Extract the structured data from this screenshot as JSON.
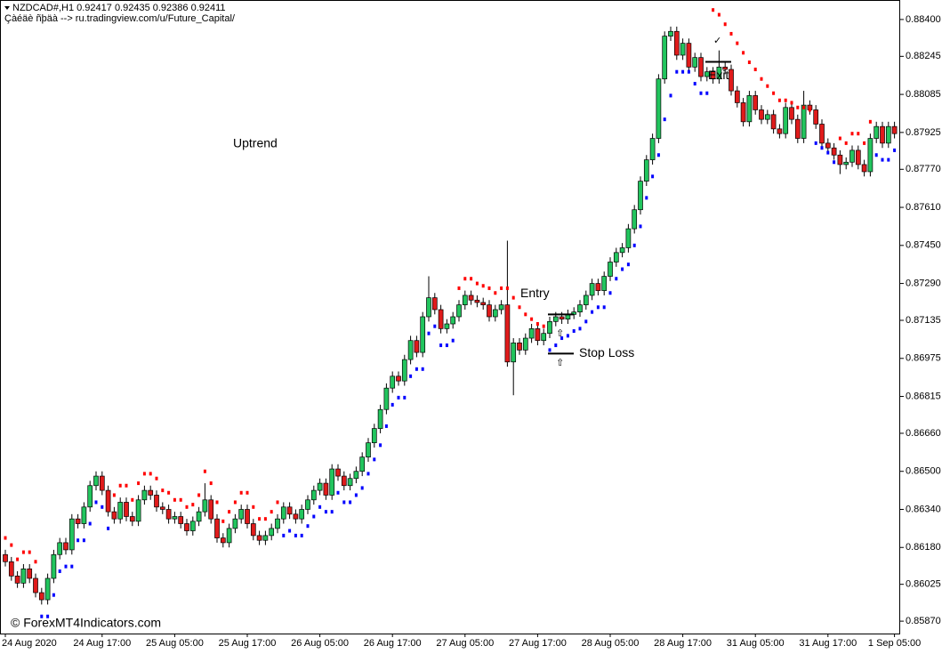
{
  "header": {
    "symbol": "NZDCAD#,H1  0.92417 0.92435 0.92386 0.92411",
    "note": "Çàéäè ñþäà --> ru.tradingview.com/u/Future_Capital/"
  },
  "chart_data": {
    "type": "candlestick",
    "categories": [
      "24 Aug 2020",
      null,
      null,
      null,
      null,
      null,
      null,
      null,
      null,
      null,
      null,
      null,
      null,
      null,
      null,
      null,
      "24 Aug 17:00",
      null,
      null,
      null,
      null,
      null,
      null,
      null,
      null,
      null,
      null,
      null,
      "25 Aug 05:00",
      null,
      null,
      null,
      null,
      null,
      null,
      null,
      null,
      null,
      null,
      null,
      "25 Aug 17:00",
      null,
      null,
      null,
      null,
      null,
      null,
      null,
      null,
      null,
      null,
      null,
      "26 Aug 05:00",
      null,
      null,
      null,
      null,
      null,
      null,
      null,
      null,
      null,
      null,
      null,
      "26 Aug 17:00",
      null,
      null,
      null,
      null,
      null,
      null,
      null,
      null,
      null,
      null,
      null,
      "27 Aug 05:00",
      null,
      null,
      null,
      null,
      null,
      null,
      null,
      null,
      null,
      null,
      null,
      "27 Aug 17:00",
      null,
      null,
      null,
      null,
      null,
      null,
      null,
      null,
      null,
      null,
      null,
      "28 Aug 05:00",
      null,
      null,
      null,
      null,
      null,
      null,
      null,
      null,
      null,
      null,
      null,
      "28 Aug 17:00",
      null,
      null,
      null,
      null,
      null,
      null,
      null,
      null,
      null,
      null,
      null,
      "31 Aug 05:00",
      null,
      null,
      null,
      null,
      null,
      null,
      null,
      null,
      null,
      null,
      null,
      "31 Aug 17:00",
      null,
      null,
      null,
      null,
      null,
      null,
      null,
      null,
      null,
      null,
      "1 Sep 05:00"
    ],
    "open": [
      0.8615,
      0.8612,
      0.8606,
      0.8603,
      0.8609,
      0.8605,
      0.8599,
      0.8596,
      0.8605,
      0.8615,
      0.862,
      0.8617,
      0.863,
      0.8628,
      0.8635,
      0.8644,
      0.8648,
      0.8642,
      0.8633,
      0.863,
      0.8637,
      0.8631,
      0.8629,
      0.8638,
      0.8642,
      0.864,
      0.8635,
      0.8634,
      0.863,
      0.8631,
      0.8628,
      0.8625,
      0.8629,
      0.8633,
      0.8638,
      0.863,
      0.8622,
      0.862,
      0.8626,
      0.863,
      0.8634,
      0.8628,
      0.8623,
      0.8621,
      0.8623,
      0.8626,
      0.863,
      0.8635,
      0.8632,
      0.863,
      0.8634,
      0.8638,
      0.8642,
      0.8645,
      0.864,
      0.8651,
      0.8648,
      0.8644,
      0.8647,
      0.865,
      0.8656,
      0.8662,
      0.8668,
      0.8676,
      0.8685,
      0.869,
      0.8688,
      0.8697,
      0.8705,
      0.87,
      0.8715,
      0.8723,
      0.8718,
      0.871,
      0.8712,
      0.8715,
      0.872,
      0.8724,
      0.8722,
      0.8721,
      0.872,
      0.8715,
      0.8718,
      0.872,
      0.8696,
      0.8704,
      0.8701,
      0.8706,
      0.871,
      0.8705,
      0.8708,
      0.8713,
      0.8715,
      0.8714,
      0.8716,
      0.8717,
      0.872,
      0.8724,
      0.8729,
      0.8726,
      0.8732,
      0.8738,
      0.8742,
      0.8744,
      0.8752,
      0.876,
      0.8772,
      0.8781,
      0.879,
      0.8815,
      0.8833,
      0.8835,
      0.8825,
      0.883,
      0.882,
      0.8824,
      0.8816,
      0.8818,
      0.8815,
      0.882,
      0.8819,
      0.881,
      0.8805,
      0.8797,
      0.8808,
      0.8802,
      0.8798,
      0.88,
      0.8794,
      0.8792,
      0.8803,
      0.8798,
      0.879,
      0.8804,
      0.8802,
      0.8796,
      0.8788,
      0.8786,
      0.8783,
      0.8779,
      0.878,
      0.8785,
      0.8779,
      0.8776,
      0.879,
      0.8795,
      0.8788,
      0.8795
    ],
    "high": [
      0.8617,
      0.8614,
      0.8608,
      0.8611,
      0.8611,
      0.8607,
      0.8601,
      0.8607,
      0.8617,
      0.8622,
      0.8622,
      0.8632,
      0.8632,
      0.8637,
      0.8646,
      0.865,
      0.865,
      0.8644,
      0.8635,
      0.8639,
      0.8639,
      0.8633,
      0.864,
      0.8644,
      0.8644,
      0.8642,
      0.8637,
      0.8636,
      0.8633,
      0.8633,
      0.863,
      0.8631,
      0.8635,
      0.8645,
      0.864,
      0.8632,
      0.8624,
      0.8628,
      0.8632,
      0.8636,
      0.8636,
      0.863,
      0.8625,
      0.8625,
      0.8628,
      0.8632,
      0.8637,
      0.8637,
      0.8634,
      0.8636,
      0.864,
      0.8644,
      0.8647,
      0.8647,
      0.8653,
      0.8653,
      0.865,
      0.8649,
      0.8652,
      0.8658,
      0.8664,
      0.867,
      0.8678,
      0.8687,
      0.8692,
      0.8692,
      0.8699,
      0.8707,
      0.8707,
      0.8717,
      0.8732,
      0.8725,
      0.872,
      0.8714,
      0.8717,
      0.8722,
      0.8726,
      0.8726,
      0.8724,
      0.8723,
      0.8722,
      0.872,
      0.8722,
      0.8747,
      0.8706,
      0.8706,
      0.8708,
      0.8712,
      0.8712,
      0.871,
      0.8715,
      0.8717,
      0.8717,
      0.8718,
      0.8719,
      0.8722,
      0.8726,
      0.8731,
      0.8731,
      0.8734,
      0.874,
      0.8744,
      0.8746,
      0.8754,
      0.8762,
      0.8774,
      0.8783,
      0.8792,
      0.8817,
      0.8835,
      0.8837,
      0.8837,
      0.8832,
      0.8832,
      0.8826,
      0.8826,
      0.882,
      0.882,
      0.8827,
      0.8822,
      0.8821,
      0.8812,
      0.8807,
      0.881,
      0.881,
      0.8804,
      0.8802,
      0.8802,
      0.8796,
      0.8805,
      0.8805,
      0.88,
      0.881,
      0.8806,
      0.8804,
      0.8798,
      0.879,
      0.8788,
      0.8785,
      0.8782,
      0.8787,
      0.8787,
      0.8781,
      0.8792,
      0.8797,
      0.8797,
      0.8797,
      0.8797
    ],
    "low": [
      0.861,
      0.8604,
      0.8601,
      0.8601,
      0.8603,
      0.8597,
      0.8594,
      0.8594,
      0.8603,
      0.8613,
      0.8615,
      0.8615,
      0.8626,
      0.8626,
      0.8633,
      0.8642,
      0.864,
      0.8631,
      0.8628,
      0.8628,
      0.8629,
      0.8627,
      0.8627,
      0.8636,
      0.8638,
      0.8633,
      0.8632,
      0.8628,
      0.8628,
      0.8626,
      0.8623,
      0.8623,
      0.8627,
      0.8631,
      0.8628,
      0.862,
      0.8618,
      0.8618,
      0.8624,
      0.8628,
      0.8626,
      0.8621,
      0.8619,
      0.8619,
      0.8621,
      0.8624,
      0.8628,
      0.863,
      0.8628,
      0.8628,
      0.8632,
      0.8636,
      0.864,
      0.8638,
      0.8638,
      0.8646,
      0.8642,
      0.8642,
      0.8645,
      0.8648,
      0.8654,
      0.866,
      0.8666,
      0.8674,
      0.8683,
      0.8686,
      0.8686,
      0.8695,
      0.8698,
      0.8698,
      0.8713,
      0.8716,
      0.8708,
      0.8708,
      0.871,
      0.8713,
      0.8718,
      0.872,
      0.8719,
      0.8718,
      0.8713,
      0.8713,
      0.8716,
      0.8694,
      0.8682,
      0.8699,
      0.8699,
      0.8704,
      0.8703,
      0.8703,
      0.8706,
      0.8711,
      0.8712,
      0.8712,
      0.8714,
      0.8715,
      0.8718,
      0.8722,
      0.8724,
      0.8724,
      0.873,
      0.8736,
      0.874,
      0.8742,
      0.875,
      0.8758,
      0.877,
      0.8779,
      0.8788,
      0.8813,
      0.8831,
      0.8823,
      0.8823,
      0.8818,
      0.8818,
      0.8814,
      0.8814,
      0.8813,
      0.8813,
      0.8817,
      0.8808,
      0.8803,
      0.8795,
      0.8795,
      0.88,
      0.8796,
      0.8796,
      0.8792,
      0.879,
      0.879,
      0.8796,
      0.8788,
      0.8788,
      0.88,
      0.8794,
      0.8786,
      0.8784,
      0.8781,
      0.8775,
      0.8777,
      0.8778,
      0.8777,
      0.8774,
      0.8774,
      0.8788,
      0.8786,
      0.8786,
      0.879
    ],
    "close": [
      0.8612,
      0.8606,
      0.8603,
      0.8609,
      0.8605,
      0.8599,
      0.8596,
      0.8605,
      0.8615,
      0.862,
      0.8617,
      0.863,
      0.8628,
      0.8635,
      0.8644,
      0.8648,
      0.8642,
      0.8633,
      0.863,
      0.8637,
      0.8631,
      0.8629,
      0.8638,
      0.8642,
      0.864,
      0.8635,
      0.8634,
      0.863,
      0.8631,
      0.8628,
      0.8625,
      0.8629,
      0.8633,
      0.8638,
      0.863,
      0.8622,
      0.862,
      0.8626,
      0.863,
      0.8634,
      0.8628,
      0.8623,
      0.8621,
      0.8623,
      0.8626,
      0.863,
      0.8635,
      0.8632,
      0.863,
      0.8634,
      0.8638,
      0.8642,
      0.8645,
      0.864,
      0.8651,
      0.8648,
      0.8644,
      0.8647,
      0.865,
      0.8656,
      0.8662,
      0.8668,
      0.8676,
      0.8685,
      0.869,
      0.8688,
      0.8697,
      0.8705,
      0.87,
      0.8715,
      0.8723,
      0.8718,
      0.871,
      0.8712,
      0.8715,
      0.872,
      0.8724,
      0.8722,
      0.8721,
      0.872,
      0.8715,
      0.8718,
      0.872,
      0.8696,
      0.8704,
      0.8701,
      0.8706,
      0.871,
      0.8705,
      0.8708,
      0.8713,
      0.8715,
      0.8714,
      0.8716,
      0.8717,
      0.872,
      0.8724,
      0.8729,
      0.8726,
      0.8732,
      0.8738,
      0.8742,
      0.8744,
      0.8752,
      0.876,
      0.8772,
      0.8781,
      0.879,
      0.8815,
      0.8833,
      0.8835,
      0.8825,
      0.883,
      0.882,
      0.8824,
      0.8816,
      0.8818,
      0.8815,
      0.882,
      0.8819,
      0.881,
      0.8805,
      0.8797,
      0.8808,
      0.8802,
      0.8798,
      0.88,
      0.8794,
      0.8792,
      0.8803,
      0.8798,
      0.879,
      0.8804,
      0.8802,
      0.8796,
      0.8788,
      0.8786,
      0.8783,
      0.8779,
      0.878,
      0.8785,
      0.8779,
      0.8776,
      0.879,
      0.8795,
      0.8788,
      0.8795,
      0.8792
    ],
    "up_color": "#22c55e",
    "down_color": "#e01b1b",
    "trail_up": {
      "color": "#0000ff",
      "values": [
        null,
        null,
        null,
        null,
        null,
        null,
        0.8589,
        0.8589,
        0.8598,
        0.8608,
        0.861,
        0.861,
        0.8621,
        0.8621,
        0.8628,
        0.8637,
        0.8635,
        0.8626,
        null,
        null,
        null,
        null,
        null,
        null,
        null,
        null,
        null,
        null,
        null,
        null,
        null,
        null,
        null,
        null,
        null,
        null,
        null,
        null,
        null,
        null,
        null,
        null,
        null,
        null,
        null,
        null,
        0.8623,
        0.8625,
        0.8623,
        0.8623,
        0.8627,
        0.8631,
        0.8635,
        0.8633,
        0.8633,
        0.8641,
        0.8637,
        0.8637,
        0.864,
        0.8643,
        0.8649,
        0.8655,
        0.8661,
        0.8669,
        0.8678,
        0.8681,
        0.8681,
        0.869,
        0.8693,
        0.8693,
        0.8708,
        0.8711,
        0.8703,
        0.8703,
        0.8705,
        null,
        null,
        null,
        null,
        null,
        null,
        null,
        null,
        null,
        null,
        null,
        null,
        null,
        null,
        null,
        0.8701,
        0.8703,
        0.8706,
        0.8707,
        0.8709,
        0.871,
        0.8713,
        0.8717,
        0.8719,
        0.8719,
        0.8725,
        0.8731,
        0.8735,
        0.8737,
        0.8745,
        0.8753,
        0.8765,
        0.8774,
        0.8783,
        0.8798,
        0.8808,
        0.8818,
        0.8818,
        0.8818,
        0.8813,
        0.8809,
        0.8809,
        null,
        null,
        null,
        null,
        null,
        null,
        null,
        null,
        null,
        null,
        null,
        null,
        null,
        null,
        null,
        null,
        null,
        0.8788,
        0.8786,
        0.8784,
        0.878,
        null,
        null,
        null,
        null,
        null,
        null,
        0.8783,
        0.8781,
        0.8781,
        0.8785
      ]
    },
    "trail_down": {
      "color": "#ff0000",
      "values": [
        0.8622,
        0.8619,
        0.8613,
        0.8616,
        0.8616,
        0.8612,
        null,
        null,
        null,
        null,
        null,
        null,
        null,
        null,
        null,
        null,
        null,
        null,
        0.864,
        0.8644,
        0.8644,
        0.8638,
        0.8645,
        0.8649,
        0.8649,
        0.8647,
        0.8642,
        0.8641,
        0.8638,
        0.8638,
        0.8635,
        0.8636,
        0.864,
        0.865,
        0.8645,
        0.8637,
        0.8629,
        0.8633,
        0.8637,
        0.8641,
        0.8641,
        0.8635,
        0.863,
        0.863,
        0.8633,
        0.8637,
        null,
        null,
        null,
        null,
        null,
        null,
        null,
        null,
        null,
        null,
        null,
        null,
        null,
        null,
        null,
        null,
        null,
        null,
        null,
        null,
        null,
        null,
        null,
        null,
        null,
        null,
        null,
        null,
        null,
        0.8727,
        0.8731,
        0.8731,
        0.8729,
        0.8728,
        0.8727,
        0.8725,
        0.8727,
        0.8727,
        0.8723,
        0.8719,
        0.8716,
        0.8714,
        0.8712,
        0.8711,
        null,
        null,
        null,
        null,
        null,
        null,
        null,
        null,
        null,
        null,
        null,
        null,
        null,
        null,
        null,
        null,
        null,
        null,
        null,
        null,
        null,
        null,
        null,
        null,
        null,
        null,
        null,
        0.8844,
        0.8842,
        0.8838,
        0.8834,
        0.883,
        0.8826,
        0.8822,
        0.8819,
        0.8815,
        0.8812,
        0.8809,
        0.8806,
        0.8806,
        0.8805,
        0.8803,
        0.8803,
        0.8802,
        null,
        null,
        null,
        null,
        0.879,
        0.8788,
        0.8792,
        0.8792,
        0.8788,
        0.8797,
        null,
        null,
        null,
        null
      ]
    },
    "ylim": [
      0.85818,
      0.88452
    ],
    "yticks": [
      {
        "value": 0.884,
        "label": "0.88400"
      },
      {
        "value": 0.88245,
        "label": "0.88245"
      },
      {
        "value": 0.88085,
        "label": "0.88085"
      },
      {
        "value": 0.87925,
        "label": "0.87925"
      },
      {
        "value": 0.8777,
        "label": "0.87770"
      },
      {
        "value": 0.8761,
        "label": "0.87610"
      },
      {
        "value": 0.8745,
        "label": "0.87450"
      },
      {
        "value": 0.8729,
        "label": "0.87290"
      },
      {
        "value": 0.87135,
        "label": "0.87135"
      },
      {
        "value": 0.86975,
        "label": "0.86975"
      },
      {
        "value": 0.86815,
        "label": "0.86815"
      },
      {
        "value": 0.8666,
        "label": "0.86660"
      },
      {
        "value": 0.865,
        "label": "0.86500"
      },
      {
        "value": 0.8634,
        "label": "0.86340"
      },
      {
        "value": 0.8618,
        "label": "0.86180"
      },
      {
        "value": 0.86025,
        "label": "0.86025"
      },
      {
        "value": 0.8587,
        "label": "0.85870"
      }
    ],
    "annotation": "Uptrend",
    "levels": [
      {
        "label": "Entry",
        "value": 0.8716
      },
      {
        "label": "Stop Loss",
        "value": 0.86995
      },
      {
        "label": "Exit",
        "value": 0.88222
      }
    ],
    "watermark": "© ForexMT4Indicators.com"
  }
}
